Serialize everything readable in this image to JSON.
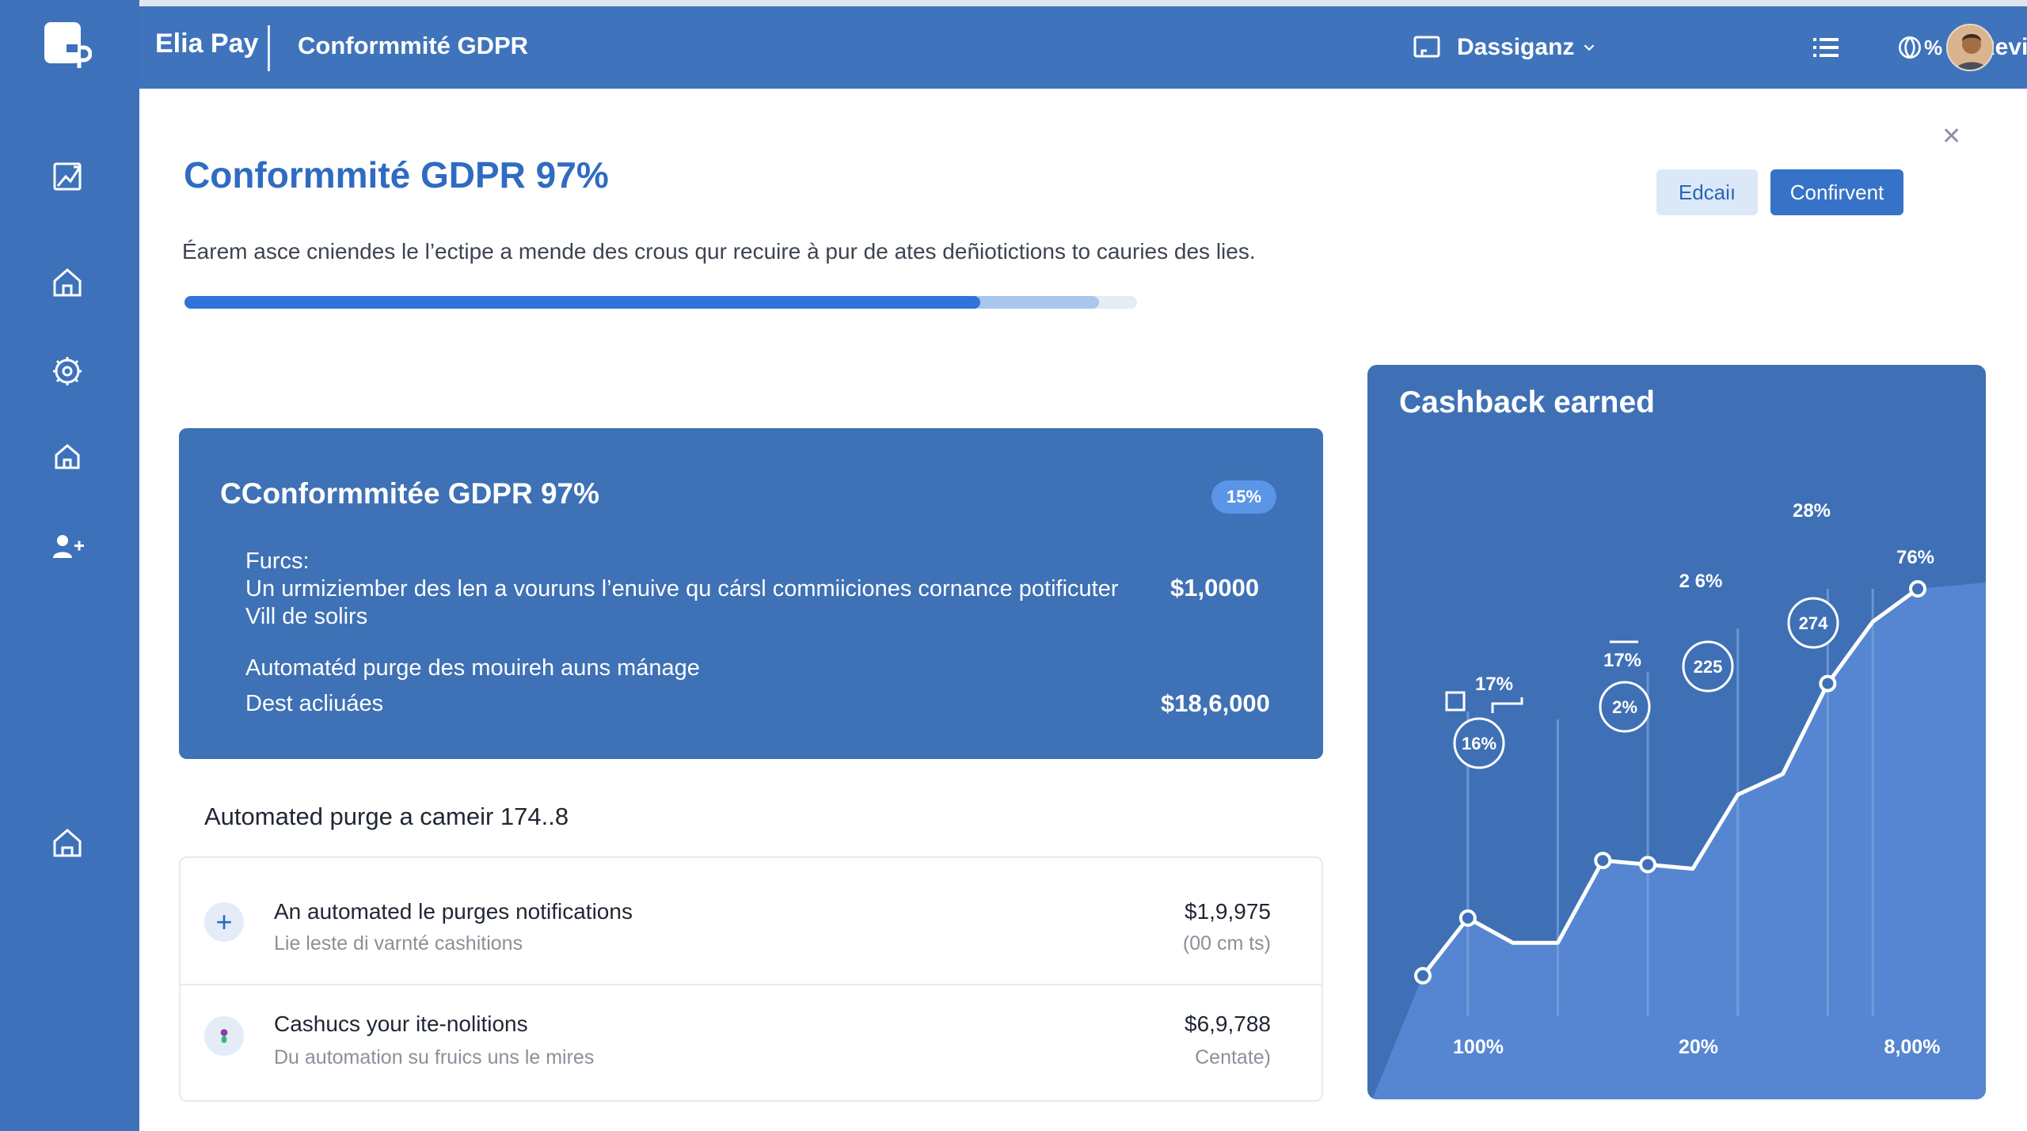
{
  "topbar": {
    "brand": "Elia Pay",
    "breadcrumb": "Conformmité GDPR",
    "workspace": "Dassiganz",
    "stat": "%",
    "user": "Revich"
  },
  "page": {
    "title": "Conformmité GDPR 97%",
    "secondary_button": "Edcaiı",
    "primary_button": "Confirvent",
    "description": "Éarem asce cniendes le l’ectipe a mende des crous qur recuire à pur de ates deñiotictions to cauries des lies.",
    "progress": 0.835,
    "progress_secondary": 0.96
  },
  "panel": {
    "title": "CConformmitée GDPR 97%",
    "badge": "15%",
    "label": "Furcs:",
    "line1": "Un urmiziember des len a vouruns l’enuive qu cársl commiiciones cornance potificuter",
    "line2": "Vill de solirs",
    "line3": "Automatéd purge des mouireh auns mánage",
    "line4": "Dest acliuáes",
    "amount1": "$1,0000",
    "amount2": "$18,6,000"
  },
  "section": {
    "title": "Automated purge a cameir 174..8"
  },
  "list": [
    {
      "title": "An automated le purges notifications",
      "subtitle": "Lie leste di varnté cashitions",
      "amount": "$1,9,975",
      "amount_sub": "(00 cm ts)",
      "icon": "plus-icon"
    },
    {
      "title": "Cashucs your ite-nolitions",
      "subtitle": "Du automation su fruics uns le mires",
      "amount": "$6,9,788",
      "amount_sub": "Centate)",
      "icon": "dot-icon"
    }
  ],
  "chart_data": {
    "type": "line",
    "title": "Cashback earned",
    "x_tick_labels": [
      "100%",
      "20%",
      "8,00%"
    ],
    "series": [
      {
        "values": [
          6,
          20,
          14,
          14,
          34,
          33,
          32,
          50,
          55,
          77,
          92,
          100
        ]
      }
    ],
    "bubbles": [
      "16%",
      "2%",
      "225",
      "274"
    ],
    "annotations": [
      "17%",
      "17%",
      "2 6%",
      "28%",
      "76%"
    ]
  },
  "colors": {
    "sidebar": "#3d72bb",
    "accent": "#2f73db",
    "title": "#2f6bc2"
  }
}
